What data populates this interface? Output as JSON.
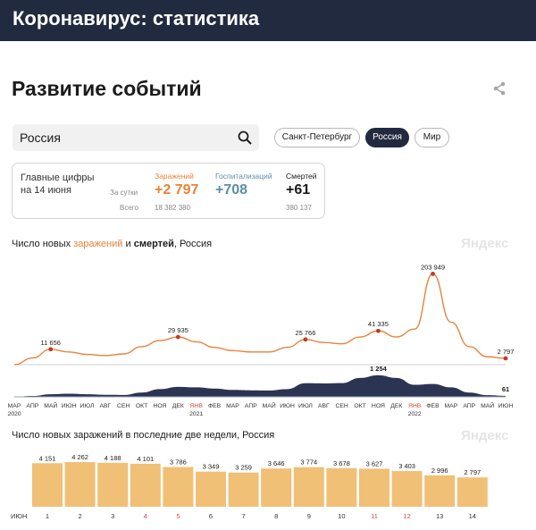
{
  "header": {
    "title": "Коронавирус: статистика"
  },
  "page": {
    "title": "Развитие событий",
    "share_icon": "share-icon"
  },
  "search": {
    "value": "Россия",
    "icon": "search-icon"
  },
  "region_chips": [
    {
      "label": "Санкт-Петербург",
      "active": false
    },
    {
      "label": "Россия",
      "active": true
    },
    {
      "label": "Мир",
      "active": false
    }
  ],
  "stats": {
    "heading_line1": "Главные цифры",
    "heading_line2": "на 14 июня",
    "row_daily_label": "За сутки",
    "row_total_label": "Всего",
    "infections": {
      "label": "Заражений",
      "daily": "+2 797",
      "total": "18 382 380",
      "color": "#e8833a"
    },
    "hospitalizations": {
      "label": "Госпитализаций",
      "daily": "+708",
      "total": "",
      "color": "#5b8fa8"
    },
    "deaths": {
      "label": "Смертей",
      "daily": "+61",
      "total": "380 137",
      "color": "#1b1b1b"
    }
  },
  "chart1_title": {
    "pre": "Число новых ",
    "accent": "заражений",
    "mid": " и ",
    "bold": "смертей",
    "post": ", Россия"
  },
  "chart2_title": {
    "text": "Число новых заражений в последние две недели, Россия"
  },
  "watermark": "Яндекс",
  "colors": {
    "header": "#222a3f",
    "infections": "#e8833a",
    "bars": "#f0c077",
    "deaths_area": "#2c3454",
    "peak_marker": "#c0392b"
  },
  "chart_data": [
    {
      "type": "line",
      "title": "Число новых заражений и смертей, Россия",
      "x_tick_labels": [
        "МАР",
        "АПР",
        "МАЙ",
        "ИЮН",
        "ИЮЛ",
        "АВГ",
        "СЕН",
        "ОКТ",
        "НОЯ",
        "ДЕК",
        "ЯНВ",
        "ФЕВ",
        "МАР",
        "АПР",
        "МАЙ",
        "ИЮН",
        "ИЮЛ",
        "АВГ",
        "СЕН",
        "ОКТ",
        "НОЯ",
        "ДЕК",
        "ЯНВ",
        "ФЕВ",
        "МАР",
        "АПР",
        "МАЙ",
        "ИЮН"
      ],
      "x_tick_red": [
        false,
        false,
        false,
        false,
        false,
        false,
        false,
        false,
        false,
        false,
        true,
        false,
        false,
        false,
        false,
        false,
        false,
        false,
        false,
        false,
        false,
        false,
        true,
        false,
        false,
        false,
        false,
        false
      ],
      "year_labels": [
        "2020",
        "2021",
        "2022"
      ],
      "series": [
        {
          "name": "заражений",
          "points": [
            [
              "2020-03",
              0
            ],
            [
              "2020-04",
              3000
            ],
            [
              "2020-05",
              11656
            ],
            [
              "2020-06",
              8500
            ],
            [
              "2020-07",
              6000
            ],
            [
              "2020-08",
              5000
            ],
            [
              "2020-09",
              6500
            ],
            [
              "2020-10",
              15000
            ],
            [
              "2020-11",
              24000
            ],
            [
              "2020-12",
              29935
            ],
            [
              "2021-01",
              22000
            ],
            [
              "2021-02",
              14000
            ],
            [
              "2021-03",
              10000
            ],
            [
              "2021-04",
              8500
            ],
            [
              "2021-05",
              8500
            ],
            [
              "2021-06",
              14000
            ],
            [
              "2021-07",
              25766
            ],
            [
              "2021-08",
              21000
            ],
            [
              "2021-09",
              19000
            ],
            [
              "2021-10",
              30000
            ],
            [
              "2021-11",
              41335
            ],
            [
              "2021-12",
              30000
            ],
            [
              "2022-01",
              45000
            ],
            [
              "2022-02",
              203949
            ],
            [
              "2022-03",
              60000
            ],
            [
              "2022-04",
              15000
            ],
            [
              "2022-05",
              4000
            ],
            [
              "2022-06",
              2797
            ]
          ]
        },
        {
          "name": "смертей",
          "points": [
            [
              "2020-03",
              0
            ],
            [
              "2020-04",
              50
            ],
            [
              "2020-05",
              150
            ],
            [
              "2020-06",
              180
            ],
            [
              "2020-07",
              150
            ],
            [
              "2020-08",
              120
            ],
            [
              "2020-09",
              110
            ],
            [
              "2020-10",
              250
            ],
            [
              "2020-11",
              450
            ],
            [
              "2020-12",
              580
            ],
            [
              "2021-01",
              550
            ],
            [
              "2021-02",
              480
            ],
            [
              "2021-03",
              400
            ],
            [
              "2021-04",
              380
            ],
            [
              "2021-05",
              370
            ],
            [
              "2021-06",
              450
            ],
            [
              "2021-07",
              790
            ],
            [
              "2021-08",
              780
            ],
            [
              "2021-09",
              800
            ],
            [
              "2021-10",
              1100
            ],
            [
              "2021-11",
              1254
            ],
            [
              "2021-12",
              1100
            ],
            [
              "2022-01",
              700
            ],
            [
              "2022-02",
              750
            ],
            [
              "2022-03",
              550
            ],
            [
              "2022-04",
              250
            ],
            [
              "2022-05",
              100
            ],
            [
              "2022-06",
              61
            ]
          ]
        }
      ],
      "annotations": [
        {
          "label": "11 656",
          "x": "2020-05",
          "y": 11656
        },
        {
          "label": "29 935",
          "x": "2020-12",
          "y": 29935
        },
        {
          "label": "25 766",
          "x": "2021-07",
          "y": 25766
        },
        {
          "label": "41 335",
          "x": "2021-11",
          "y": 41335
        },
        {
          "label": "203 949",
          "x": "2022-02",
          "y": 203949
        },
        {
          "label": "2 797",
          "x": "2022-06",
          "y": 2797
        },
        {
          "label": "1 254",
          "x": "2021-11",
          "y": 1254,
          "series": "смертей"
        },
        {
          "label": "61",
          "x": "2022-06",
          "y": 61,
          "series": "смертей"
        }
      ]
    },
    {
      "type": "bar",
      "title": "Число новых заражений в последние две недели, Россия",
      "month_label": "ИЮН",
      "categories": [
        "1",
        "2",
        "3",
        "4",
        "5",
        "6",
        "7",
        "8",
        "9",
        "10",
        "11",
        "12",
        "13",
        "14"
      ],
      "category_red": [
        false,
        false,
        false,
        true,
        true,
        false,
        false,
        false,
        false,
        false,
        true,
        true,
        false,
        false
      ],
      "values": [
        4151,
        4262,
        4188,
        4101,
        3786,
        3349,
        3259,
        3646,
        3774,
        3678,
        3627,
        3403,
        2996,
        2797
      ],
      "value_labels": [
        "4 151",
        "4 262",
        "4 188",
        "4 101",
        "3 786",
        "3 349",
        "3 259",
        "3 646",
        "3 774",
        "3 678",
        "3 627",
        "3 403",
        "2 996",
        "2 797"
      ],
      "ylim": [
        0,
        4600
      ]
    }
  ]
}
